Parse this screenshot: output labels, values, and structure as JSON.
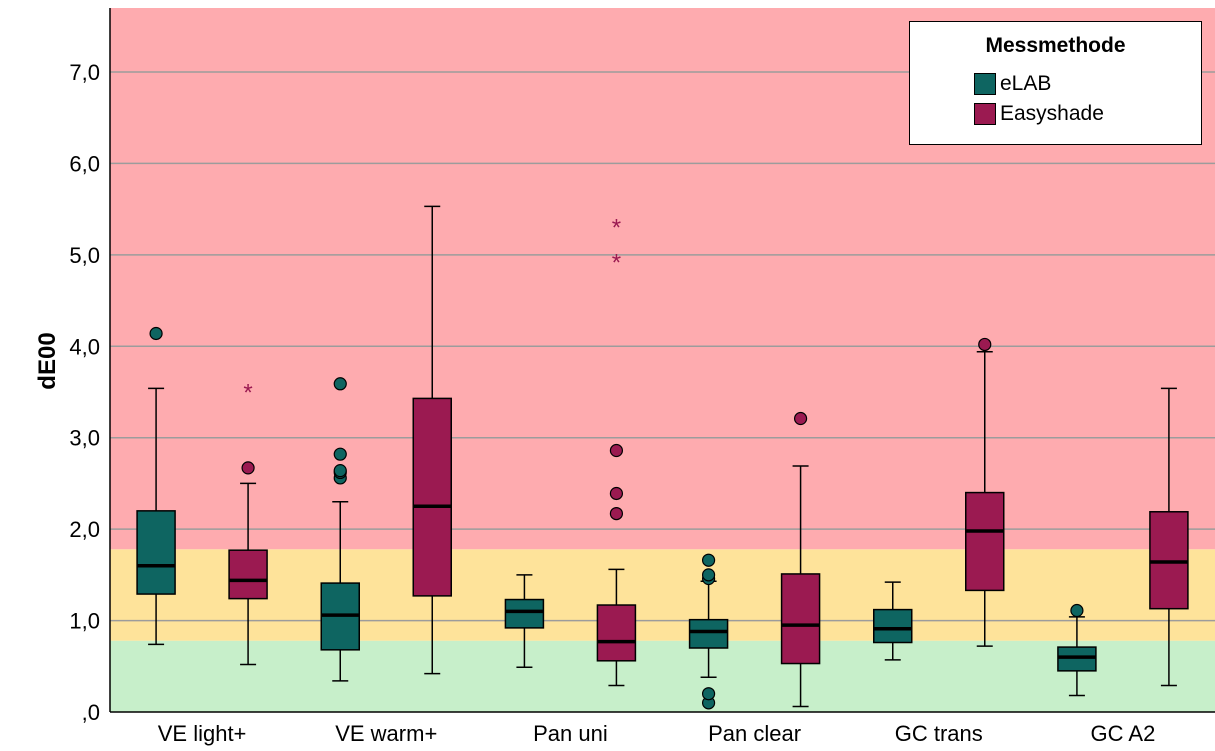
{
  "chart_data": {
    "type": "boxplot",
    "ylabel": "dE00",
    "xlabel": "",
    "ylim": [
      0,
      7.7
    ],
    "yticks": [
      {
        "value": 0,
        "label": ",0"
      },
      {
        "value": 1,
        "label": "1,0"
      },
      {
        "value": 2,
        "label": "2,0"
      },
      {
        "value": 3,
        "label": "3,0"
      },
      {
        "value": 4,
        "label": "4,0"
      },
      {
        "value": 5,
        "label": "5,0"
      },
      {
        "value": 6,
        "label": "6,0"
      },
      {
        "value": 7,
        "label": "7,0"
      }
    ],
    "grid": true,
    "background_bands": [
      {
        "from": 0,
        "to": 0.78,
        "color": "#c7efca"
      },
      {
        "from": 0.78,
        "to": 1.78,
        "color": "#fee39a"
      },
      {
        "from": 1.78,
        "to": 7.7,
        "color": "#feabaf"
      }
    ],
    "categories": [
      "VE light+",
      "VE warm+",
      "Pan uni",
      "Pan clear",
      "GC trans",
      "GC A2"
    ],
    "legend": {
      "title": "Messmethode",
      "position": "top-right"
    },
    "series": [
      {
        "name": "eLAB",
        "color": "#0e6561",
        "boxes": [
          {
            "min": 0.74,
            "q1": 1.29,
            "median": 1.6,
            "q3": 2.2,
            "max": 3.54,
            "outliers": [
              4.14
            ],
            "extremes": []
          },
          {
            "min": 0.34,
            "q1": 0.68,
            "median": 1.06,
            "q3": 1.41,
            "max": 2.3,
            "outliers": [
              2.56,
              2.62,
              2.64,
              2.82,
              3.59
            ],
            "extremes": []
          },
          {
            "min": 0.49,
            "q1": 0.92,
            "median": 1.1,
            "q3": 1.23,
            "max": 1.5,
            "outliers": [],
            "extremes": []
          },
          {
            "min": 0.38,
            "q1": 0.7,
            "median": 0.88,
            "q3": 1.01,
            "max": 1.43,
            "outliers": [
              0.1,
              0.2,
              1.46,
              1.5,
              1.66
            ],
            "extremes": []
          },
          {
            "min": 0.57,
            "q1": 0.76,
            "median": 0.91,
            "q3": 1.12,
            "max": 1.42,
            "outliers": [],
            "extremes": []
          },
          {
            "min": 0.18,
            "q1": 0.45,
            "median": 0.6,
            "q3": 0.71,
            "max": 1.04,
            "outliers": [
              1.11
            ],
            "extremes": []
          }
        ]
      },
      {
        "name": "Easyshade",
        "color": "#9b1a51",
        "boxes": [
          {
            "min": 0.52,
            "q1": 1.24,
            "median": 1.44,
            "q3": 1.77,
            "max": 2.5,
            "outliers": [
              2.67
            ],
            "extremes": [
              3.53
            ]
          },
          {
            "min": 0.42,
            "q1": 1.27,
            "median": 2.25,
            "q3": 3.43,
            "max": 5.53,
            "outliers": [],
            "extremes": []
          },
          {
            "min": 0.29,
            "q1": 0.56,
            "median": 0.77,
            "q3": 1.17,
            "max": 1.56,
            "outliers": [
              2.17,
              2.39,
              2.86
            ],
            "extremes": [
              4.95,
              5.33
            ]
          },
          {
            "min": 0.06,
            "q1": 0.53,
            "median": 0.95,
            "q3": 1.51,
            "max": 2.69,
            "outliers": [
              3.21
            ],
            "extremes": []
          },
          {
            "min": 0.72,
            "q1": 1.33,
            "median": 1.98,
            "q3": 2.4,
            "max": 3.94,
            "outliers": [
              4.02
            ],
            "extremes": []
          },
          {
            "min": 0.29,
            "q1": 1.13,
            "median": 1.64,
            "q3": 2.19,
            "max": 3.54,
            "outliers": [],
            "extremes": []
          }
        ]
      }
    ]
  }
}
